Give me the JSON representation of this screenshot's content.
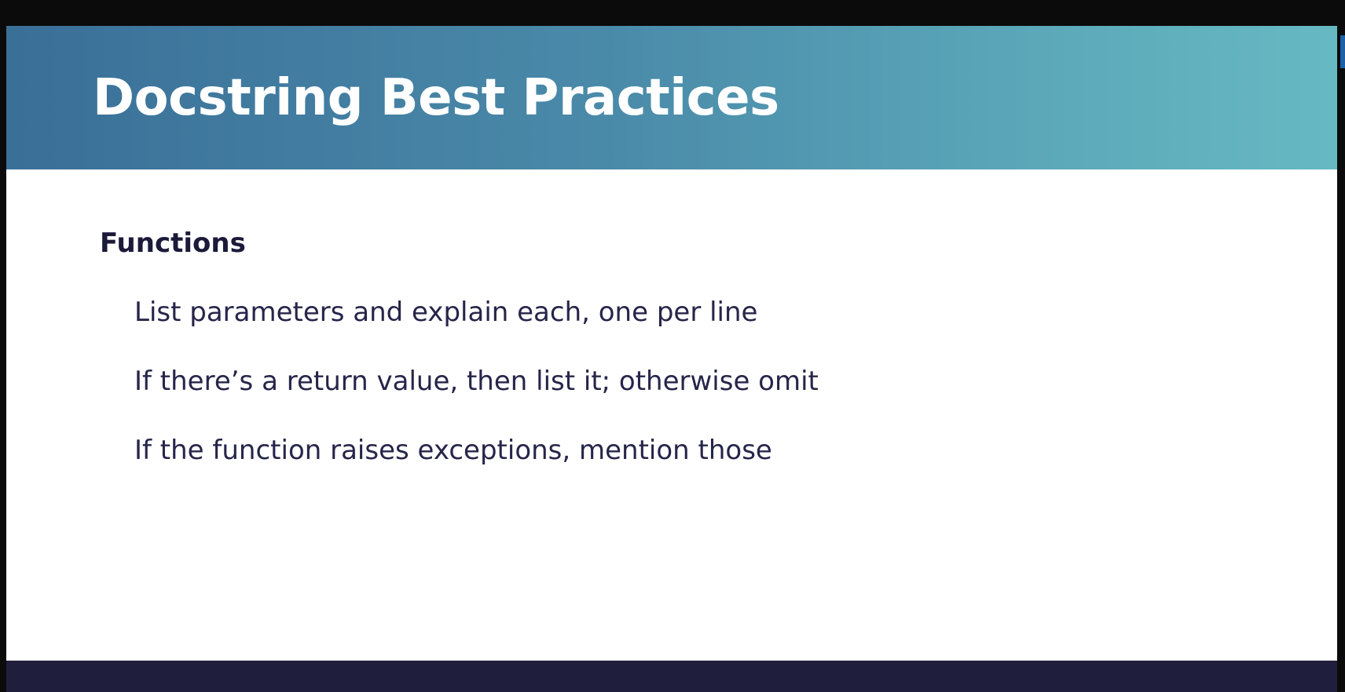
{
  "slide": {
    "title": "Docstring Best Practices",
    "section_heading": "Functions",
    "bullets": [
      "List parameters and explain each, one per line",
      "If there’s a return value, then list it; otherwise omit",
      "If the function raises exceptions, mention those"
    ]
  },
  "colors": {
    "header_gradient_start": "#3a6f98",
    "header_gradient_end": "#66b9c3",
    "footer_bar": "#1f1e3c",
    "heading_text": "#1b1a3a",
    "body_text": "#26254a"
  }
}
